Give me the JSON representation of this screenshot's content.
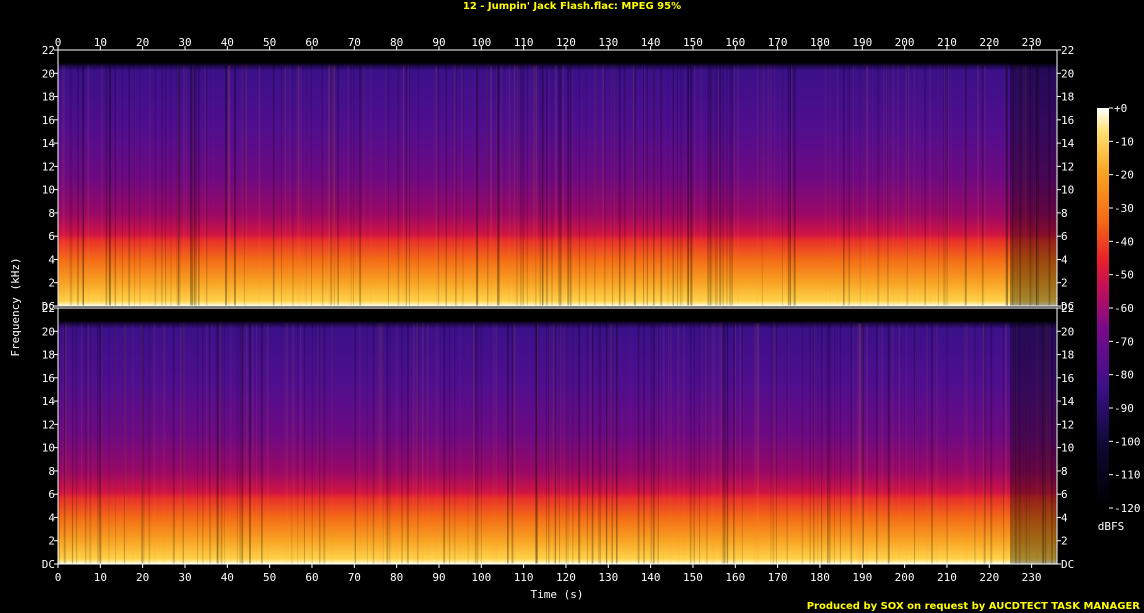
{
  "title": "12 - Jumpin' Jack Flash.flac: MPEG 95%",
  "footer": "Produced by SOX on request by AUCDTECT TASK MANAGER",
  "colors": {
    "background": "#000000",
    "text": "#ffffff",
    "title": "#ffff00"
  },
  "chart_data": {
    "type": "heatmap",
    "title": "12 - Jumpin' Jack Flash.flac: MPEG 95%",
    "xlabel": "Time (s)",
    "ylabel": "Frequency (kHz)",
    "x_ticks": [
      "0",
      "10",
      "20",
      "30",
      "40",
      "50",
      "60",
      "70",
      "80",
      "90",
      "100",
      "110",
      "120",
      "130",
      "140",
      "150",
      "160",
      "170",
      "180",
      "190",
      "200",
      "210",
      "220",
      "230"
    ],
    "x_tick_values": [
      0,
      10,
      20,
      30,
      40,
      50,
      60,
      70,
      80,
      90,
      100,
      110,
      120,
      130,
      140,
      150,
      160,
      170,
      180,
      190,
      200,
      210,
      220,
      230
    ],
    "xlim": [
      0,
      236
    ],
    "y_ticks": [
      "DC",
      "2",
      "4",
      "6",
      "8",
      "10",
      "12",
      "14",
      "16",
      "18",
      "20",
      "22"
    ],
    "y_tick_values": [
      0,
      2,
      4,
      6,
      8,
      10,
      12,
      14,
      16,
      18,
      20,
      22
    ],
    "ylim": [
      0,
      22
    ],
    "channels": 2,
    "lowpass_cutoff_khz": 20.3,
    "colorbar": {
      "label": "dBFS",
      "ticks": [
        "+0",
        "-10",
        "-20",
        "-30",
        "-40",
        "-50",
        "-60",
        "-70",
        "-80",
        "-90",
        "-100",
        "-110",
        "-120"
      ],
      "tick_values": [
        0,
        -10,
        -20,
        -30,
        -40,
        -50,
        -60,
        -70,
        -80,
        -90,
        -100,
        -110,
        -120
      ],
      "range": [
        -120,
        0
      ]
    }
  }
}
